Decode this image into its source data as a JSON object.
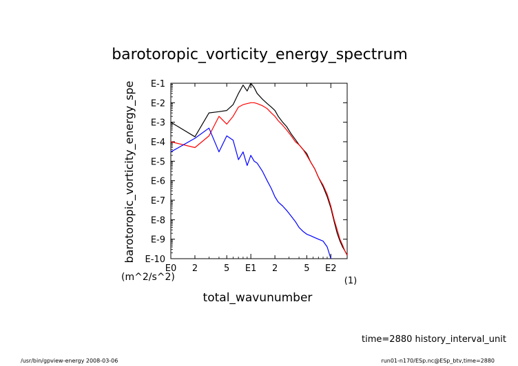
{
  "chart_data": {
    "type": "line",
    "title": "barotoropic_vorticity_energy_spectrum",
    "xlabel": "total_wavunumber",
    "x_unit": "(1)",
    "ylabel": "barotoropic_vorticity_energy_spe",
    "y_unit": "(m^2/s^2)",
    "x_scale": "log",
    "y_scale": "log",
    "xlim": [
      1,
      160
    ],
    "ylim": [
      1e-10,
      0.1
    ],
    "x_ticks": [
      {
        "value": 1,
        "label": "E0"
      },
      {
        "value": 2,
        "label": "2"
      },
      {
        "value": 5,
        "label": "5"
      },
      {
        "value": 10,
        "label": "E1"
      },
      {
        "value": 20,
        "label": "2"
      },
      {
        "value": 50,
        "label": "5"
      },
      {
        "value": 100,
        "label": "E2"
      }
    ],
    "y_ticks": [
      {
        "value": 1e-10,
        "label": "E-10"
      },
      {
        "value": 1e-09,
        "label": "E-9"
      },
      {
        "value": 1e-08,
        "label": "E-8"
      },
      {
        "value": 1e-07,
        "label": "E-7"
      },
      {
        "value": 1e-06,
        "label": "E-6"
      },
      {
        "value": 1e-05,
        "label": "E-5"
      },
      {
        "value": 0.0001,
        "label": "E-4"
      },
      {
        "value": 0.001,
        "label": "E-3"
      },
      {
        "value": 0.01,
        "label": "E-2"
      },
      {
        "value": 0.1,
        "label": "E-1"
      }
    ],
    "grid": false,
    "series": [
      {
        "color": "#000000",
        "x": [
          1,
          2,
          3,
          4,
          5,
          6,
          7,
          8,
          9,
          10,
          11,
          12,
          14,
          16,
          18,
          20,
          22,
          25,
          28,
          32,
          36,
          40,
          45,
          50,
          56,
          63,
          70,
          80,
          90,
          100,
          110,
          120,
          130,
          140,
          150,
          160
        ],
        "y": [
          0.001,
          0.00018,
          0.003,
          0.0035,
          0.004,
          0.008,
          0.03,
          0.08,
          0.04,
          0.1,
          0.06,
          0.03,
          0.015,
          0.009,
          0.006,
          0.004,
          0.002,
          0.001,
          0.0006,
          0.00025,
          0.00013,
          7e-05,
          4e-05,
          2.5e-05,
          9e-06,
          4e-06,
          1.5e-06,
          5e-07,
          1.5e-07,
          4e-08,
          8e-09,
          2e-09,
          8e-10,
          4e-10,
          2.5e-10,
          1.5e-10
        ]
      },
      {
        "color": "#ff0000",
        "x": [
          1,
          2,
          3,
          4,
          5,
          6,
          7,
          8,
          9,
          10,
          11,
          12,
          14,
          16,
          18,
          20,
          22,
          25,
          28,
          32,
          36,
          40,
          45,
          50,
          56,
          63,
          70,
          80,
          90,
          100,
          110,
          120,
          130,
          140,
          150,
          160
        ],
        "y": [
          0.0001,
          5e-05,
          0.0002,
          0.002,
          0.0008,
          0.002,
          0.006,
          0.008,
          0.009,
          0.01,
          0.01,
          0.009,
          0.007,
          0.005,
          0.003,
          0.002,
          0.0012,
          0.0007,
          0.0004,
          0.0002,
          0.0001,
          7e-05,
          4e-05,
          2e-05,
          9e-06,
          4e-06,
          1.5e-06,
          6e-07,
          2e-07,
          5e-08,
          1e-08,
          3e-09,
          1e-09,
          5e-10,
          2.5e-10,
          1.5e-10
        ]
      },
      {
        "color": "#0000ff",
        "x": [
          1,
          2,
          3,
          4,
          5,
          6,
          7,
          8,
          9,
          10,
          11,
          12,
          14,
          16,
          18,
          20,
          22,
          25,
          28,
          32,
          36,
          40,
          45,
          50,
          56,
          63,
          70,
          80,
          90,
          100
        ],
        "y": [
          3e-05,
          0.00015,
          0.0005,
          3e-05,
          0.0002,
          0.00012,
          1.2e-05,
          3e-05,
          6e-06,
          2e-05,
          1e-05,
          8e-06,
          3e-06,
          1e-06,
          4e-07,
          1.5e-07,
          8e-08,
          5e-08,
          3e-08,
          1.5e-08,
          8e-09,
          4e-09,
          2.5e-09,
          1.8e-09,
          1.5e-09,
          1.2e-09,
          1e-09,
          8e-10,
          4e-10,
          1e-10
        ]
      }
    ]
  },
  "footer": {
    "time_info": "time=2880 history_interval_unit",
    "program": "/usr/bin/gpview-energy  2008-03-06",
    "source": "run01-n170/ESp.nc@ESp_btv,time=2880"
  }
}
